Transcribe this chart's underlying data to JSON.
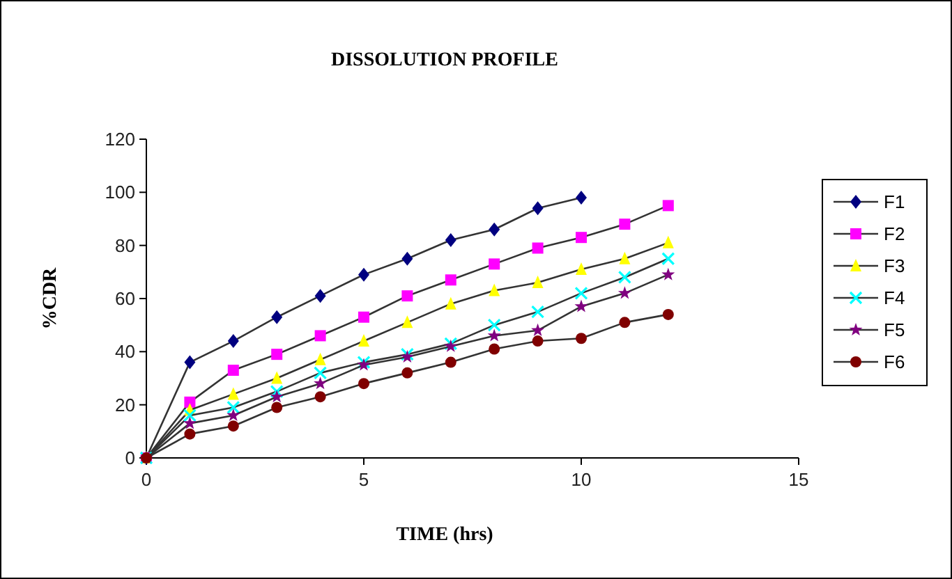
{
  "chart_data": {
    "type": "line",
    "title": "DISSOLUTION PROFILE",
    "xlabel": "TIME (hrs)",
    "ylabel": "%CDR",
    "xlim": [
      0,
      15
    ],
    "xticks": [
      0,
      5,
      10,
      15
    ],
    "ylim": [
      0,
      120
    ],
    "yticks": [
      0,
      20,
      40,
      60,
      80,
      100,
      120
    ],
    "grid": false,
    "legend": "right",
    "x": [
      0,
      1,
      2,
      3,
      4,
      5,
      6,
      7,
      8,
      9,
      10,
      11,
      12
    ],
    "series": [
      {
        "name": "F1",
        "color": "#000080",
        "marker": "diamond",
        "values": [
          0,
          36,
          44,
          53,
          61,
          69,
          75,
          82,
          86,
          94,
          98,
          null,
          null
        ]
      },
      {
        "name": "F2",
        "color": "#ff00ff",
        "marker": "square",
        "values": [
          0,
          21,
          33,
          39,
          46,
          53,
          61,
          67,
          73,
          79,
          83,
          88,
          95
        ]
      },
      {
        "name": "F3",
        "color": "#ffff00",
        "marker": "triangle",
        "values": [
          0,
          18,
          24,
          30,
          37,
          44,
          51,
          58,
          63,
          66,
          71,
          75,
          81
        ]
      },
      {
        "name": "F4",
        "color": "#00ffff",
        "marker": "cross",
        "values": [
          0,
          16,
          19,
          25,
          32,
          36,
          39,
          43,
          50,
          55,
          62,
          68,
          75
        ]
      },
      {
        "name": "F5",
        "color": "#800080",
        "marker": "star",
        "values": [
          0,
          13,
          16,
          23,
          28,
          35,
          38,
          42,
          46,
          48,
          57,
          62,
          69
        ]
      },
      {
        "name": "F6",
        "color": "#800000",
        "marker": "circle",
        "values": [
          0,
          9,
          12,
          19,
          23,
          28,
          32,
          36,
          41,
          44,
          45,
          51,
          54
        ]
      }
    ]
  }
}
